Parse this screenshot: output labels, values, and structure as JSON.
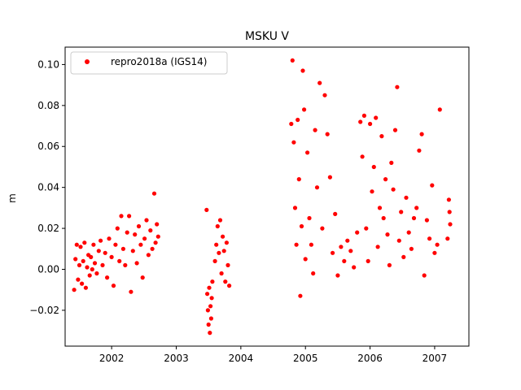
{
  "chart_data": {
    "type": "scatter",
    "title": "MSKU V",
    "xlabel": "",
    "ylabel": "m",
    "xlim": [
      2001.28,
      2007.53
    ],
    "ylim": [
      -0.0375,
      0.1085
    ],
    "xticks": [
      2002,
      2003,
      2004,
      2005,
      2006,
      2007
    ],
    "xtick_labels": [
      "2002",
      "2003",
      "2004",
      "2005",
      "2006",
      "2007"
    ],
    "yticks": [
      -0.02,
      0.0,
      0.02,
      0.04,
      0.06,
      0.08,
      0.1
    ],
    "ytick_labels": [
      "−0.02",
      "0.00",
      "0.02",
      "0.04",
      "0.06",
      "0.08",
      "0.10"
    ],
    "grid": false,
    "legend_position": "top-left",
    "marker_color": "#ff0000",
    "series": [
      {
        "name": "repro2018a (IGS14)",
        "points": [
          [
            2001.42,
            -0.01
          ],
          [
            2001.44,
            0.005
          ],
          [
            2001.46,
            0.012
          ],
          [
            2001.48,
            -0.005
          ],
          [
            2001.5,
            0.002
          ],
          [
            2001.52,
            0.011
          ],
          [
            2001.54,
            -0.007
          ],
          [
            2001.56,
            0.004
          ],
          [
            2001.58,
            0.013
          ],
          [
            2001.6,
            -0.009
          ],
          [
            2001.62,
            0.001
          ],
          [
            2001.64,
            0.007
          ],
          [
            2001.66,
            -0.003
          ],
          [
            2001.68,
            0.006
          ],
          [
            2001.7,
            0.0
          ],
          [
            2001.72,
            0.012
          ],
          [
            2001.74,
            0.003
          ],
          [
            2001.77,
            -0.002
          ],
          [
            2001.8,
            0.009
          ],
          [
            2001.83,
            0.014
          ],
          [
            2001.86,
            0.002
          ],
          [
            2001.9,
            0.008
          ],
          [
            2001.93,
            -0.004
          ],
          [
            2001.96,
            0.015
          ],
          [
            2002.0,
            0.006
          ],
          [
            2002.03,
            -0.008
          ],
          [
            2002.06,
            0.012
          ],
          [
            2002.09,
            0.02
          ],
          [
            2002.12,
            0.004
          ],
          [
            2002.15,
            0.026
          ],
          [
            2002.18,
            0.01
          ],
          [
            2002.21,
            0.002
          ],
          [
            2002.24,
            0.018
          ],
          [
            2002.27,
            0.026
          ],
          [
            2002.3,
            -0.011
          ],
          [
            2002.33,
            0.009
          ],
          [
            2002.36,
            0.017
          ],
          [
            2002.39,
            0.003
          ],
          [
            2002.42,
            0.021
          ],
          [
            2002.45,
            0.012
          ],
          [
            2002.48,
            -0.004
          ],
          [
            2002.51,
            0.015
          ],
          [
            2002.54,
            0.024
          ],
          [
            2002.57,
            0.007
          ],
          [
            2002.6,
            0.019
          ],
          [
            2002.63,
            0.01
          ],
          [
            2002.66,
            0.037
          ],
          [
            2002.68,
            0.013
          ],
          [
            2002.7,
            0.022
          ],
          [
            2002.72,
            0.016
          ],
          [
            2003.47,
            0.029
          ],
          [
            2003.48,
            -0.012
          ],
          [
            2003.49,
            -0.02
          ],
          [
            2003.5,
            -0.027
          ],
          [
            2003.51,
            -0.009
          ],
          [
            2003.52,
            -0.031
          ],
          [
            2003.53,
            -0.018
          ],
          [
            2003.54,
            -0.024
          ],
          [
            2003.55,
            -0.014
          ],
          [
            2003.56,
            -0.006
          ],
          [
            2003.6,
            0.004
          ],
          [
            2003.62,
            0.012
          ],
          [
            2003.64,
            0.021
          ],
          [
            2003.66,
            0.008
          ],
          [
            2003.68,
            0.024
          ],
          [
            2003.7,
            -0.002
          ],
          [
            2003.72,
            0.016
          ],
          [
            2003.74,
            0.009
          ],
          [
            2003.76,
            -0.006
          ],
          [
            2003.78,
            0.013
          ],
          [
            2003.8,
            0.002
          ],
          [
            2003.82,
            -0.008
          ],
          [
            2004.78,
            0.071
          ],
          [
            2004.8,
            0.102
          ],
          [
            2004.82,
            0.062
          ],
          [
            2004.84,
            0.03
          ],
          [
            2004.86,
            0.012
          ],
          [
            2004.88,
            0.073
          ],
          [
            2004.9,
            0.044
          ],
          [
            2004.92,
            -0.013
          ],
          [
            2004.94,
            0.021
          ],
          [
            2004.96,
            0.097
          ],
          [
            2004.98,
            0.078
          ],
          [
            2005.0,
            0.005
          ],
          [
            2005.03,
            0.057
          ],
          [
            2005.06,
            0.025
          ],
          [
            2005.09,
            0.012
          ],
          [
            2005.12,
            -0.002
          ],
          [
            2005.15,
            0.068
          ],
          [
            2005.18,
            0.04
          ],
          [
            2005.22,
            0.091
          ],
          [
            2005.26,
            0.02
          ],
          [
            2005.3,
            0.085
          ],
          [
            2005.34,
            0.066
          ],
          [
            2005.38,
            0.045
          ],
          [
            2005.42,
            0.008
          ],
          [
            2005.46,
            0.027
          ],
          [
            2005.5,
            -0.003
          ],
          [
            2005.55,
            0.011
          ],
          [
            2005.6,
            0.004
          ],
          [
            2005.65,
            0.014
          ],
          [
            2005.7,
            0.009
          ],
          [
            2005.75,
            0.001
          ],
          [
            2005.8,
            0.018
          ],
          [
            2005.85,
            0.072
          ],
          [
            2005.88,
            0.055
          ],
          [
            2005.91,
            0.075
          ],
          [
            2005.94,
            0.02
          ],
          [
            2005.97,
            0.004
          ],
          [
            2006.0,
            0.071
          ],
          [
            2006.03,
            0.038
          ],
          [
            2006.06,
            0.05
          ],
          [
            2006.09,
            0.074
          ],
          [
            2006.12,
            0.011
          ],
          [
            2006.15,
            0.03
          ],
          [
            2006.18,
            0.065
          ],
          [
            2006.21,
            0.025
          ],
          [
            2006.24,
            0.044
          ],
          [
            2006.27,
            0.017
          ],
          [
            2006.3,
            0.002
          ],
          [
            2006.33,
            0.052
          ],
          [
            2006.36,
            0.039
          ],
          [
            2006.39,
            0.068
          ],
          [
            2006.42,
            0.089
          ],
          [
            2006.45,
            0.014
          ],
          [
            2006.48,
            0.028
          ],
          [
            2006.52,
            0.006
          ],
          [
            2006.56,
            0.035
          ],
          [
            2006.6,
            0.018
          ],
          [
            2006.64,
            0.01
          ],
          [
            2006.68,
            0.025
          ],
          [
            2006.72,
            0.03
          ],
          [
            2006.76,
            0.058
          ],
          [
            2006.8,
            0.066
          ],
          [
            2006.84,
            -0.003
          ],
          [
            2006.88,
            0.024
          ],
          [
            2006.92,
            0.015
          ],
          [
            2006.96,
            0.041
          ],
          [
            2007.0,
            0.008
          ],
          [
            2007.04,
            0.012
          ],
          [
            2007.08,
            0.078
          ],
          [
            2007.2,
            0.015
          ],
          [
            2007.22,
            0.034
          ],
          [
            2007.23,
            0.028
          ],
          [
            2007.24,
            0.022
          ]
        ]
      }
    ]
  }
}
